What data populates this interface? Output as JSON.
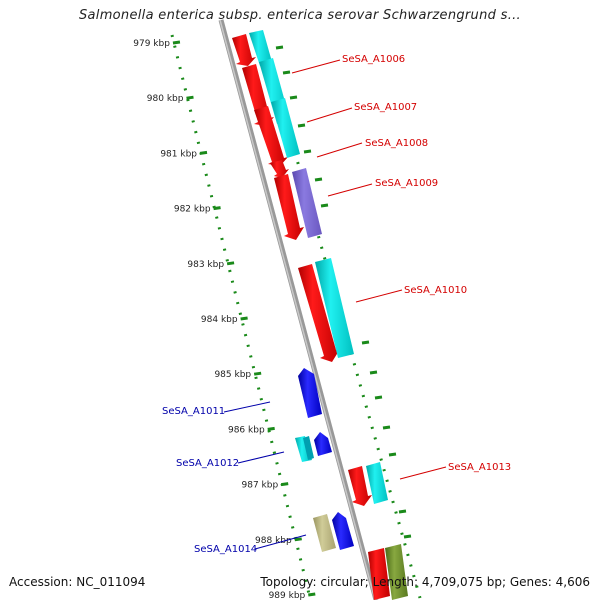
{
  "header": {
    "title": "Salmonella enterica subsp. enterica serovar Schwarzengrund s..."
  },
  "footer": {
    "accession": "Accession: NC_011094",
    "summary": "Topology: circular; Length: 4,709,075 bp; Genes: 4,606"
  },
  "colors": {
    "forward_label": "#d40000",
    "reverse_label": "#0000aa",
    "cds": "#ff0000",
    "cyan_feature": "#00e0e0",
    "purple_feature": "#7b6ad0",
    "blue_feature": "#1010e0",
    "olive_feature": "#b5b07a",
    "green_feature": "#6a8a2a",
    "scale_dots": "#1a8a1a",
    "backbone": "#999999"
  },
  "scale": {
    "ticks": [
      "979 kbp",
      "980 kbp",
      "981 kbp",
      "982 kbp",
      "983 kbp",
      "984 kbp",
      "985 kbp",
      "986 kbp",
      "987 kbp",
      "988 kbp",
      "989 kbp"
    ]
  },
  "features": [
    {
      "label": "SeSA_A1006",
      "strand": "forward"
    },
    {
      "label": "SeSA_A1007",
      "strand": "forward"
    },
    {
      "label": "SeSA_A1008",
      "strand": "forward"
    },
    {
      "label": "SeSA_A1009",
      "strand": "forward"
    },
    {
      "label": "SeSA_A1010",
      "strand": "forward"
    },
    {
      "label": "SeSA_A1011",
      "strand": "reverse"
    },
    {
      "label": "SeSA_A1012",
      "strand": "reverse"
    },
    {
      "label": "SeSA_A1013",
      "strand": "forward"
    },
    {
      "label": "SeSA_A1014",
      "strand": "reverse"
    }
  ]
}
